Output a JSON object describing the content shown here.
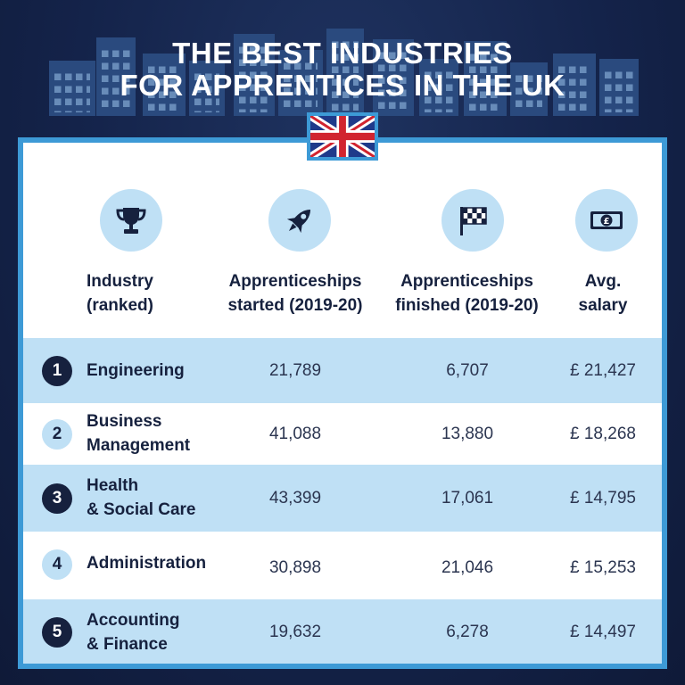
{
  "title_line1": "THE BEST INDUSTRIES",
  "title_line2": "FOR APPRENTICES IN THE UK",
  "colors": {
    "background": "#14234a",
    "accent": "#3d9ad6",
    "row_alt": "#bfe0f5",
    "dark_text": "#16213e"
  },
  "icons": [
    "trophy-icon",
    "rocket-icon",
    "checkered-flag-icon",
    "banknote-pound-icon",
    "uk-flag-icon"
  ],
  "columns": [
    {
      "label": "Industry\n(ranked)"
    },
    {
      "label": "Apprenticeships\nstarted (2019-20)"
    },
    {
      "label": "Apprenticeships\nfinished (2019-20)"
    },
    {
      "label": "Avg.\nsalary"
    }
  ],
  "chart_data": {
    "type": "table",
    "title": "THE BEST INDUSTRIES FOR APPRENTICES IN THE UK",
    "columns": [
      "Industry (ranked)",
      "Apprenticeships started (2019-20)",
      "Apprenticeships finished (2019-20)",
      "Avg. salary"
    ],
    "rows": [
      {
        "rank": "1",
        "industry": "Engineering",
        "started": "21,789",
        "finished": "6,707",
        "salary": "£ 21,427"
      },
      {
        "rank": "2",
        "industry": "Business\nManagement",
        "started": "41,088",
        "finished": "13,880",
        "salary": "£ 18,268"
      },
      {
        "rank": "3",
        "industry": "Health\n& Social Care",
        "started": "43,399",
        "finished": "17,061",
        "salary": "£ 14,795"
      },
      {
        "rank": "4",
        "industry": "Administration",
        "started": "30,898",
        "finished": "21,046",
        "salary": "£ 15,253"
      },
      {
        "rank": "5",
        "industry": "Accounting\n& Finance",
        "started": "19,632",
        "finished": "6,278",
        "salary": "£ 14,497"
      }
    ]
  }
}
